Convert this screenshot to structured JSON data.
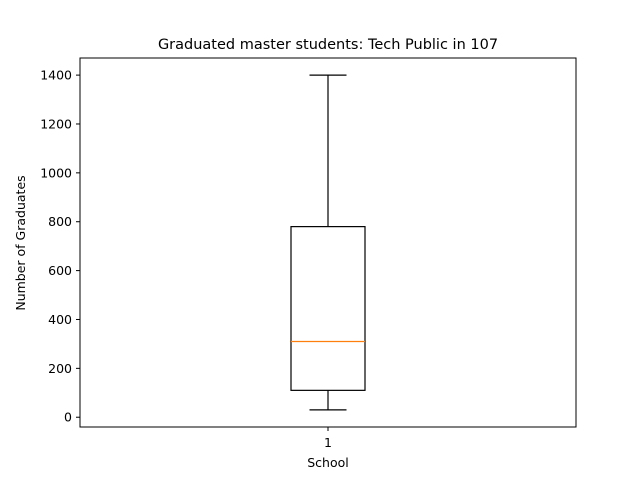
{
  "chart_data": {
    "type": "box",
    "title": "Graduated master students: Tech Public in 107",
    "xlabel": "School",
    "ylabel": "Number of Graduates",
    "categories": [
      "1"
    ],
    "boxes": [
      {
        "label": "1",
        "whisker_low": 30,
        "q1": 110,
        "median": 310,
        "q3": 780,
        "whisker_high": 1400
      }
    ],
    "yticks": [
      0,
      200,
      400,
      600,
      800,
      1000,
      1200,
      1400
    ],
    "ylim": [
      -40,
      1470
    ],
    "grid": false,
    "colors": {
      "box": "#000000",
      "median": "#ff7f0e",
      "axes": "#000000"
    }
  }
}
